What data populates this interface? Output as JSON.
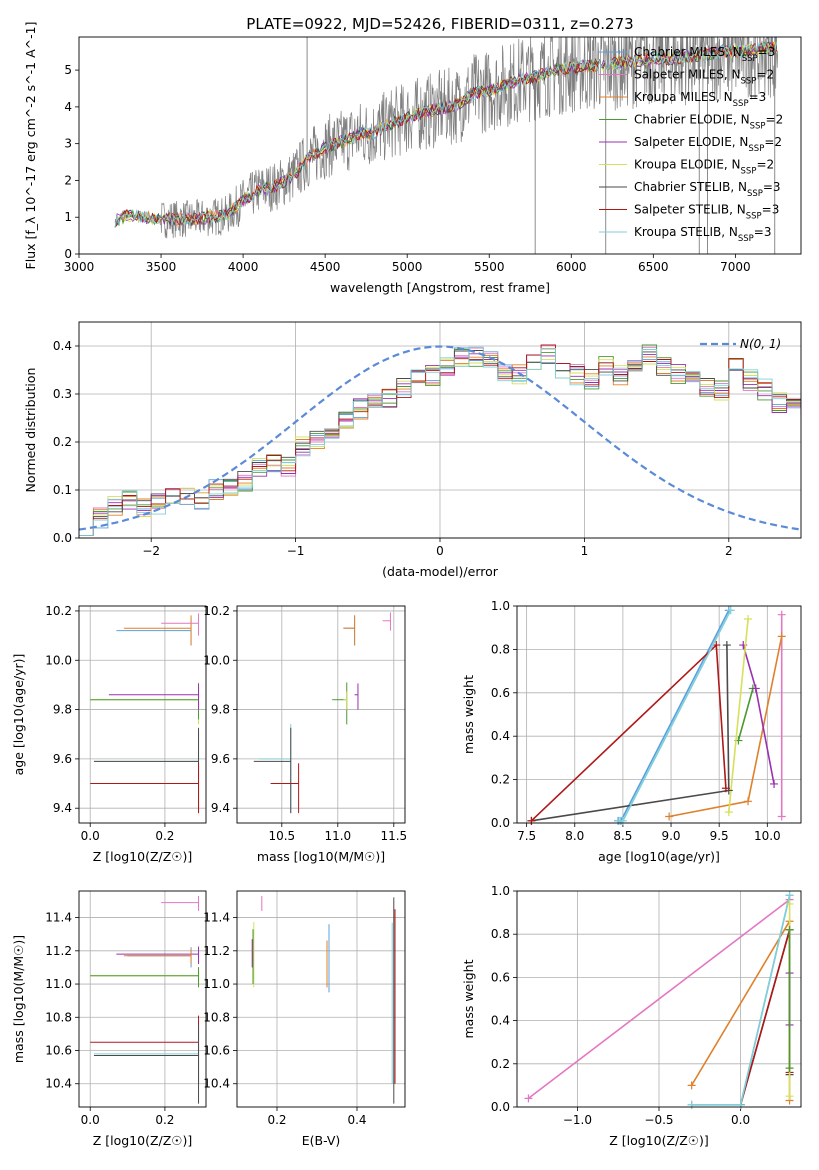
{
  "figure": {
    "title": "PLATE=0922, MJD=52426, FIBERID=0311, z=0.273"
  },
  "colors": {
    "Chabrier MILES": "#5aa0e0",
    "Salpeter MILES": "#e377c2",
    "Kroupa MILES": "#e0802a",
    "Chabrier ELODIE": "#4a9a30",
    "Salpeter ELODIE": "#9a30b0",
    "Kroupa ELODIE": "#d6e05a",
    "Chabrier STELIB": "#4a4a4a",
    "Salpeter STELIB": "#b01818",
    "Kroupa STELIB": "#80d0d8",
    "data": "#7f7f7f",
    "gauss": "#5b8ad8"
  },
  "chart_data": [
    {
      "id": "spectrum",
      "type": "line",
      "xlabel": "wavelength [Angstrom, rest frame]",
      "ylabel": "Flux [f_λ 10^-17 erg cm^-2 s^-1 A^-1]",
      "xlim": [
        3000,
        7400
      ],
      "ylim": [
        0,
        5.9
      ],
      "xticks": [
        3000,
        3500,
        4000,
        4500,
        5000,
        5500,
        6000,
        6500,
        7000
      ],
      "yticks": [
        0,
        1,
        2,
        3,
        4,
        5
      ],
      "legend_position": "top-right",
      "legend": [
        {
          "model": "Chabrier MILES",
          "label": "Chabrier MILES, N",
          "n": "3"
        },
        {
          "model": "Salpeter MILES",
          "label": "Salpeter MILES, N",
          "n": "2"
        },
        {
          "model": "Kroupa MILES",
          "label": "Kroupa MILES, N",
          "n": "3"
        },
        {
          "model": "Chabrier ELODIE",
          "label": "Chabrier ELODIE, N",
          "n": "2"
        },
        {
          "model": "Salpeter ELODIE",
          "label": "Salpeter ELODIE, N",
          "n": "2"
        },
        {
          "model": "Kroupa ELODIE",
          "label": "Kroupa ELODIE, N",
          "n": "2"
        },
        {
          "model": "Chabrier STELIB",
          "label": "Chabrier STELIB, N",
          "n": "3"
        },
        {
          "model": "Salpeter STELIB",
          "label": "Salpeter STELIB, N",
          "n": "3"
        },
        {
          "model": "Kroupa STELIB",
          "label": "Kroupa STELIB, N",
          "n": "3"
        }
      ],
      "continuum": [
        [
          3220,
          0.0
        ],
        [
          3220,
          0.9
        ],
        [
          3300,
          1.05
        ],
        [
          3400,
          1.0
        ],
        [
          3500,
          0.95
        ],
        [
          3600,
          0.95
        ],
        [
          3700,
          0.95
        ],
        [
          3800,
          1.0
        ],
        [
          3900,
          1.05
        ],
        [
          4000,
          1.45
        ],
        [
          4100,
          1.75
        ],
        [
          4200,
          1.85
        ],
        [
          4300,
          2.1
        ],
        [
          4400,
          2.6
        ],
        [
          4500,
          2.9
        ],
        [
          4600,
          3.05
        ],
        [
          4700,
          3.25
        ],
        [
          4800,
          3.3
        ],
        [
          4900,
          3.55
        ],
        [
          5000,
          3.7
        ],
        [
          5100,
          3.85
        ],
        [
          5200,
          3.95
        ],
        [
          5300,
          4.05
        ],
        [
          5400,
          4.35
        ],
        [
          5500,
          4.45
        ],
        [
          5600,
          4.6
        ],
        [
          5700,
          4.75
        ],
        [
          5800,
          4.85
        ],
        [
          5900,
          5.0
        ],
        [
          6000,
          5.05
        ],
        [
          6100,
          5.1
        ],
        [
          6200,
          5.15
        ],
        [
          6300,
          5.2
        ],
        [
          6400,
          5.25
        ],
        [
          6500,
          5.3
        ],
        [
          6600,
          5.3
        ],
        [
          6700,
          5.35
        ],
        [
          6800,
          5.4
        ],
        [
          6900,
          5.5
        ],
        [
          7000,
          5.5
        ],
        [
          7100,
          5.55
        ],
        [
          7200,
          5.6
        ],
        [
          7260,
          5.6
        ]
      ],
      "spikes": [
        [
          4390,
          6.2
        ],
        [
          5780,
          0.0
        ],
        [
          6210,
          0.0
        ],
        [
          6780,
          0.0
        ],
        [
          6830,
          0.0
        ],
        [
          7240,
          0.0
        ]
      ]
    },
    {
      "id": "residuals",
      "type": "bar",
      "xlabel": "(data-model)/error",
      "ylabel": "Normed distribution",
      "xlim": [
        -2.5,
        2.5
      ],
      "ylim": [
        0,
        0.45
      ],
      "xticks": [
        -2,
        -1,
        0,
        1,
        2
      ],
      "yticks": [
        0.0,
        0.1,
        0.2,
        0.3,
        0.4
      ],
      "bin_width": 0.1,
      "bin_start": -2.5,
      "base_hist": [
        0.02,
        0.04,
        0.07,
        0.08,
        0.06,
        0.07,
        0.09,
        0.09,
        0.08,
        0.1,
        0.1,
        0.12,
        0.15,
        0.16,
        0.15,
        0.19,
        0.2,
        0.22,
        0.24,
        0.27,
        0.28,
        0.29,
        0.31,
        0.33,
        0.34,
        0.36,
        0.38,
        0.38,
        0.37,
        0.35,
        0.34,
        0.36,
        0.38,
        0.35,
        0.34,
        0.33,
        0.36,
        0.34,
        0.36,
        0.38,
        0.36,
        0.34,
        0.33,
        0.31,
        0.31,
        0.36,
        0.33,
        0.31,
        0.28,
        0.27,
        0.27,
        0.26,
        0.22,
        0.25,
        0.22,
        0.19,
        0.17,
        0.16,
        0.15,
        0.14,
        0.13,
        0.11,
        0.1,
        0.09,
        0.08,
        0.07,
        0.06,
        0.05,
        0.04,
        0.04,
        0.03,
        0.03,
        0.03,
        0.02,
        0.02
      ],
      "gauss_label": "N(0, 1)",
      "legend_position": "top-right"
    },
    {
      "id": "age-vs-Z",
      "type": "scatter",
      "xlabel": "Z [log10(Z/Z☉)]",
      "ylabel": "age  [log10(age/yr)]",
      "xlim": [
        -0.03,
        0.31
      ],
      "ylim": [
        9.34,
        10.22
      ],
      "xticks": [
        0.0,
        0.2
      ],
      "yticks": [
        9.4,
        9.6,
        9.8,
        10.0,
        10.2
      ],
      "points": [
        {
          "model": "Chabrier MILES",
          "x": 0.27,
          "y": 10.12,
          "xlo": 0.07,
          "ylo": 10.06
        },
        {
          "model": "Kroupa MILES",
          "x": 0.27,
          "y": 10.13,
          "xlo": 0.09,
          "ylo": 10.06
        },
        {
          "model": "Salpeter MILES",
          "x": 0.29,
          "y": 10.15,
          "xlo": 0.19,
          "ylo": 10.1
        },
        {
          "model": "Kroupa ELODIE",
          "x": 0.29,
          "y": 9.84,
          "xlo": 0.0,
          "ylo": 9.74
        },
        {
          "model": "Chabrier ELODIE",
          "x": 0.29,
          "y": 9.84,
          "xlo": 0.0,
          "ylo": 9.76
        },
        {
          "model": "Salpeter ELODIE",
          "x": 0.29,
          "y": 9.86,
          "xlo": 0.05,
          "ylo": 9.8
        },
        {
          "model": "Kroupa STELIB",
          "x": 0.29,
          "y": 9.59,
          "xlo": 0.01,
          "ylo": 9.4
        },
        {
          "model": "Chabrier STELIB",
          "x": 0.29,
          "y": 9.59,
          "xlo": 0.01,
          "ylo": 9.38
        },
        {
          "model": "Salpeter STELIB",
          "x": 0.29,
          "y": 9.5,
          "xlo": 0.0,
          "ylo": 9.38
        }
      ]
    },
    {
      "id": "age-vs-mass",
      "type": "scatter",
      "xlabel": "mass [log10(M/M☉)]",
      "ylabel": "",
      "xlim": [
        10.1,
        11.6
      ],
      "ylim": [
        9.34,
        10.22
      ],
      "xticks": [
        10.5,
        11.0,
        11.5
      ],
      "yticks": [
        9.4,
        9.6,
        9.8,
        10.0,
        10.2
      ],
      "points": [
        {
          "model": "Chabrier MILES",
          "x": 11.15,
          "y": 10.13,
          "xlo": 11.05,
          "ylo": 10.06
        },
        {
          "model": "Kroupa MILES",
          "x": 11.15,
          "y": 10.13,
          "xlo": 11.05,
          "ylo": 10.06
        },
        {
          "model": "Salpeter MILES",
          "x": 11.47,
          "y": 10.16,
          "xlo": 11.4,
          "ylo": 10.12
        },
        {
          "model": "Chabrier ELODIE",
          "x": 11.08,
          "y": 9.84,
          "xlo": 10.95,
          "ylo": 9.74
        },
        {
          "model": "Kroupa ELODIE",
          "x": 11.08,
          "y": 9.84,
          "xlo": 11.05,
          "ylo": 9.8
        },
        {
          "model": "Salpeter ELODIE",
          "x": 11.18,
          "y": 9.86,
          "xlo": 11.15,
          "ylo": 9.8
        },
        {
          "model": "Kroupa STELIB",
          "x": 10.58,
          "y": 9.6,
          "xlo": 10.3,
          "ylo": 9.38
        },
        {
          "model": "Chabrier STELIB",
          "x": 10.58,
          "y": 9.59,
          "xlo": 10.25,
          "ylo": 9.38
        },
        {
          "model": "Salpeter STELIB",
          "x": 10.65,
          "y": 9.5,
          "xlo": 10.4,
          "ylo": 9.38
        }
      ]
    },
    {
      "id": "weight-vs-age",
      "type": "line",
      "xlabel": "age  [log10(age/yr)]",
      "ylabel": "mass weight",
      "xlim": [
        7.4,
        10.35
      ],
      "ylim": [
        0,
        1.0
      ],
      "xticks": [
        7.5,
        8.0,
        8.5,
        9.0,
        9.5,
        10.0
      ],
      "yticks": [
        0.0,
        0.2,
        0.4,
        0.6,
        0.8,
        1.0
      ],
      "series": [
        {
          "model": "Chabrier MILES",
          "x": [
            8.45,
            8.48,
            9.6
          ],
          "y": [
            0.01,
            0.01,
            0.98
          ]
        },
        {
          "model": "Salpeter MILES",
          "x": [
            10.15,
            10.15
          ],
          "y": [
            0.03,
            0.96
          ]
        },
        {
          "model": "Kroupa MILES",
          "x": [
            8.98,
            9.8,
            10.15
          ],
          "y": [
            0.03,
            0.1,
            0.86
          ]
        },
        {
          "model": "Chabrier ELODIE",
          "x": [
            9.7,
            9.85
          ],
          "y": [
            0.38,
            0.62
          ]
        },
        {
          "model": "Salpeter ELODIE",
          "x": [
            9.75,
            9.88,
            10.07
          ],
          "y": [
            0.82,
            0.62,
            0.18
          ]
        },
        {
          "model": "Kroupa ELODIE",
          "x": [
            9.6,
            9.8
          ],
          "y": [
            0.05,
            0.94
          ]
        },
        {
          "model": "Chabrier STELIB",
          "x": [
            7.55,
            9.6,
            9.58
          ],
          "y": [
            0.01,
            0.15,
            0.82
          ]
        },
        {
          "model": "Salpeter STELIB",
          "x": [
            7.55,
            9.47,
            9.57
          ],
          "y": [
            0.01,
            0.82,
            0.16
          ]
        },
        {
          "model": "Kroupa STELIB",
          "x": [
            8.46,
            8.5,
            9.62
          ],
          "y": [
            0.01,
            0.01,
            0.98
          ]
        }
      ]
    },
    {
      "id": "mass-vs-Z",
      "type": "scatter",
      "xlabel": "Z [log10(Z/Z☉)]",
      "ylabel": "mass [log10(M/M☉)]",
      "xlim": [
        -0.03,
        0.31
      ],
      "ylim": [
        10.26,
        11.56
      ],
      "xticks": [
        0.0,
        0.2
      ],
      "yticks": [
        10.4,
        10.6,
        10.8,
        11.0,
        11.2,
        11.4
      ],
      "points": [
        {
          "model": "Salpeter MILES",
          "x": 0.29,
          "y": 11.49,
          "xlo": 0.19,
          "ylo": 11.44
        },
        {
          "model": "Salpeter ELODIE",
          "x": 0.29,
          "y": 11.18,
          "xlo": 0.07,
          "ylo": 11.12
        },
        {
          "model": "Chabrier MILES",
          "x": 0.27,
          "y": 11.17,
          "xlo": 0.1,
          "ylo": 11.1
        },
        {
          "model": "Kroupa MILES",
          "x": 0.27,
          "y": 11.17,
          "xlo": 0.09,
          "ylo": 11.12
        },
        {
          "model": "Kroupa ELODIE",
          "x": 0.29,
          "y": 11.05,
          "xlo": 0.0,
          "ylo": 11.0
        },
        {
          "model": "Chabrier ELODIE",
          "x": 0.29,
          "y": 11.05,
          "xlo": 0.0,
          "ylo": 10.98
        },
        {
          "model": "Salpeter STELIB",
          "x": 0.29,
          "y": 10.65,
          "xlo": 0.0,
          "ylo": 10.4
        },
        {
          "model": "Kroupa STELIB",
          "x": 0.29,
          "y": 10.58,
          "xlo": 0.01,
          "ylo": 10.4
        },
        {
          "model": "Chabrier STELIB",
          "x": 0.29,
          "y": 10.57,
          "xlo": 0.01,
          "ylo": 10.28
        }
      ]
    },
    {
      "id": "mass-vs-EBV",
      "type": "scatter",
      "xlabel": "E(B-V)",
      "ylabel": "",
      "xlim": [
        0.1,
        0.52
      ],
      "ylim": [
        10.26,
        11.56
      ],
      "xticks": [
        0.2,
        0.4
      ],
      "yticks": [
        10.4,
        10.6,
        10.8,
        11.0,
        11.2,
        11.4
      ],
      "points": [
        {
          "model": "Salpeter MILES",
          "x": 0.162,
          "y": 11.49,
          "ylo": 11.44
        },
        {
          "model": "Kroupa ELODIE",
          "x": 0.142,
          "y": 11.22,
          "ylo": 10.98
        },
        {
          "model": "Chabrier ELODIE",
          "x": 0.14,
          "y": 11.2,
          "ylo": 11.0
        },
        {
          "model": "Salpeter ELODIE",
          "x": 0.138,
          "y": 11.2,
          "ylo": 11.1
        },
        {
          "model": "Chabrier MILES",
          "x": 0.33,
          "y": 11.2,
          "ylo": 10.95
        },
        {
          "model": "Kroupa MILES",
          "x": 0.325,
          "y": 11.15,
          "ylo": 10.98
        },
        {
          "model": "Salpeter STELIB",
          "x": 0.495,
          "y": 11.05,
          "ylo": 10.4
        },
        {
          "model": "Chabrier STELIB",
          "x": 0.492,
          "y": 11.05,
          "ylo": 10.28
        },
        {
          "model": "Kroupa STELIB",
          "x": 0.488,
          "y": 11.0,
          "ylo": 10.4
        }
      ]
    },
    {
      "id": "weight-vs-Z",
      "type": "line",
      "xlabel": "Z [log10(Z/Z☉)]",
      "ylabel": "mass weight",
      "xlim": [
        -1.37,
        0.37
      ],
      "ylim": [
        0,
        1.0
      ],
      "xticks": [
        -1.0,
        -0.5,
        0.0
      ],
      "yticks": [
        0.0,
        0.2,
        0.4,
        0.6,
        0.8,
        1.0
      ],
      "series": [
        {
          "model": "Salpeter MILES",
          "x": [
            -1.3,
            0.3
          ],
          "y": [
            0.04,
            0.96
          ]
        },
        {
          "model": "Kroupa MILES",
          "x": [
            -0.3,
            0.3,
            0.3
          ],
          "y": [
            0.1,
            0.86,
            0.03
          ]
        },
        {
          "model": "Chabrier MILES",
          "x": [
            -0.3,
            0.0,
            0.3
          ],
          "y": [
            0.01,
            0.01,
            0.98
          ]
        },
        {
          "model": "Chabrier STELIB",
          "x": [
            0.0,
            0.3,
            0.3
          ],
          "y": [
            0.01,
            0.82,
            0.15
          ]
        },
        {
          "model": "Salpeter STELIB",
          "x": [
            0.0,
            0.3,
            0.3
          ],
          "y": [
            0.01,
            0.82,
            0.16
          ]
        },
        {
          "model": "Kroupa STELIB",
          "x": [
            -0.3,
            0.0,
            0.3
          ],
          "y": [
            0.01,
            0.01,
            0.98
          ]
        },
        {
          "model": "Kroupa ELODIE",
          "x": [
            0.3,
            0.3
          ],
          "y": [
            0.05,
            0.94
          ]
        },
        {
          "model": "Salpeter ELODIE",
          "x": [
            0.3,
            0.3
          ],
          "y": [
            0.38,
            0.62
          ]
        },
        {
          "model": "Chabrier ELODIE",
          "x": [
            0.3,
            0.3
          ],
          "y": [
            0.18,
            0.82
          ]
        }
      ]
    }
  ]
}
